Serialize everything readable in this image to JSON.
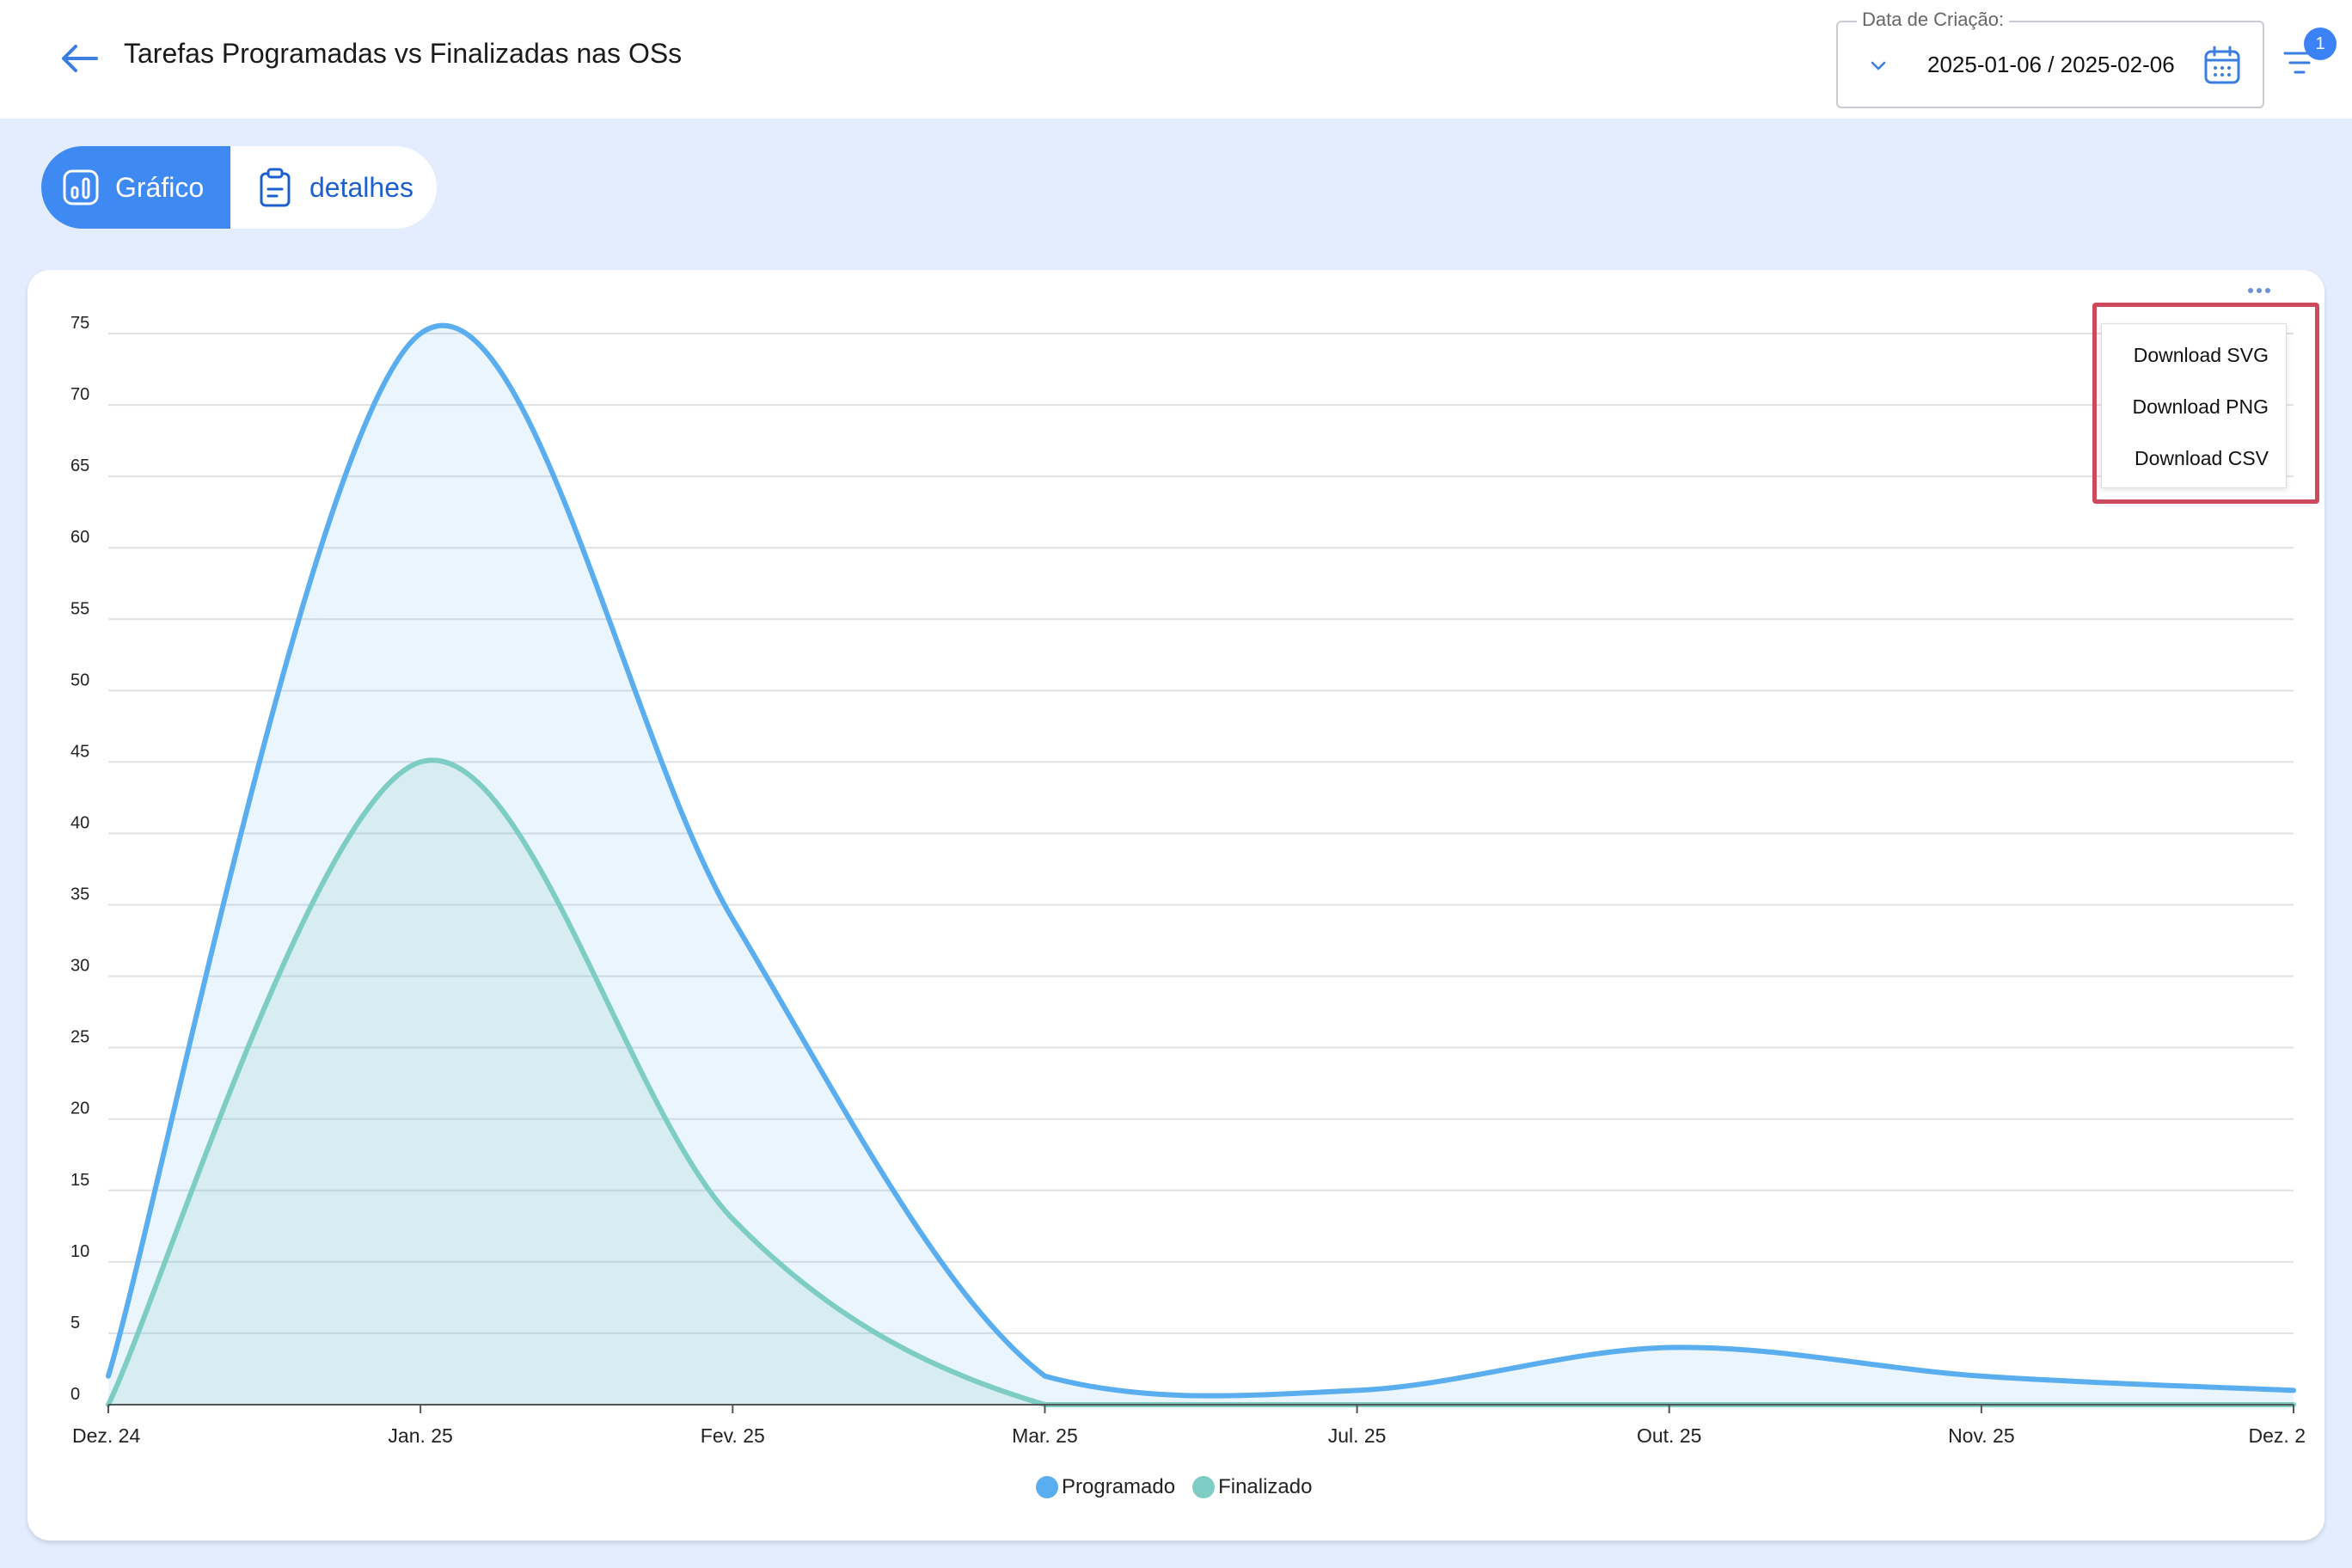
{
  "header": {
    "title": "Tarefas Programadas vs Finalizadas nas OSs",
    "date_filter": {
      "label": "Data de Criação:",
      "value": "2025-01-06 / 2025-02-06"
    },
    "filter_badge": "1",
    "icons": {
      "back": "arrow-left-icon",
      "chevron": "chevron-down-icon",
      "calendar": "calendar-icon",
      "filter": "filter-icon"
    }
  },
  "tabs": [
    {
      "label": "Gráfico",
      "icon": "bar-chart-icon",
      "active": true
    },
    {
      "label": "detalhes",
      "icon": "clipboard-icon",
      "active": false
    }
  ],
  "export_menu": {
    "items": [
      "Download SVG",
      "Download PNG",
      "Download CSV"
    ]
  },
  "colors": {
    "programado": "#5aaef0",
    "finalizado": "#7ecdc4",
    "accent": "#3f8af2",
    "highlight_border": "#cc4a5c"
  },
  "chart_data": {
    "type": "area",
    "title": "",
    "xlabel": "",
    "ylabel": "",
    "x_ticks": [
      "Dez. 24",
      "Jan. 25",
      "Fev. 25",
      "Mar. 25",
      "Jul. 25",
      "Out. 25",
      "Nov. 25",
      "Dez. 2"
    ],
    "y_ticks": [
      0,
      5,
      10,
      15,
      20,
      25,
      30,
      35,
      40,
      45,
      50,
      55,
      60,
      65,
      70,
      75
    ],
    "ylim": [
      0,
      75
    ],
    "grid": true,
    "legend_position": "bottom-center",
    "series": [
      {
        "name": "Programado",
        "values": [
          2,
          75,
          34,
          2,
          1,
          4,
          2,
          1
        ]
      },
      {
        "name": "Finalizado",
        "values": [
          0,
          45,
          13,
          0,
          0,
          0,
          0,
          0
        ]
      }
    ]
  }
}
